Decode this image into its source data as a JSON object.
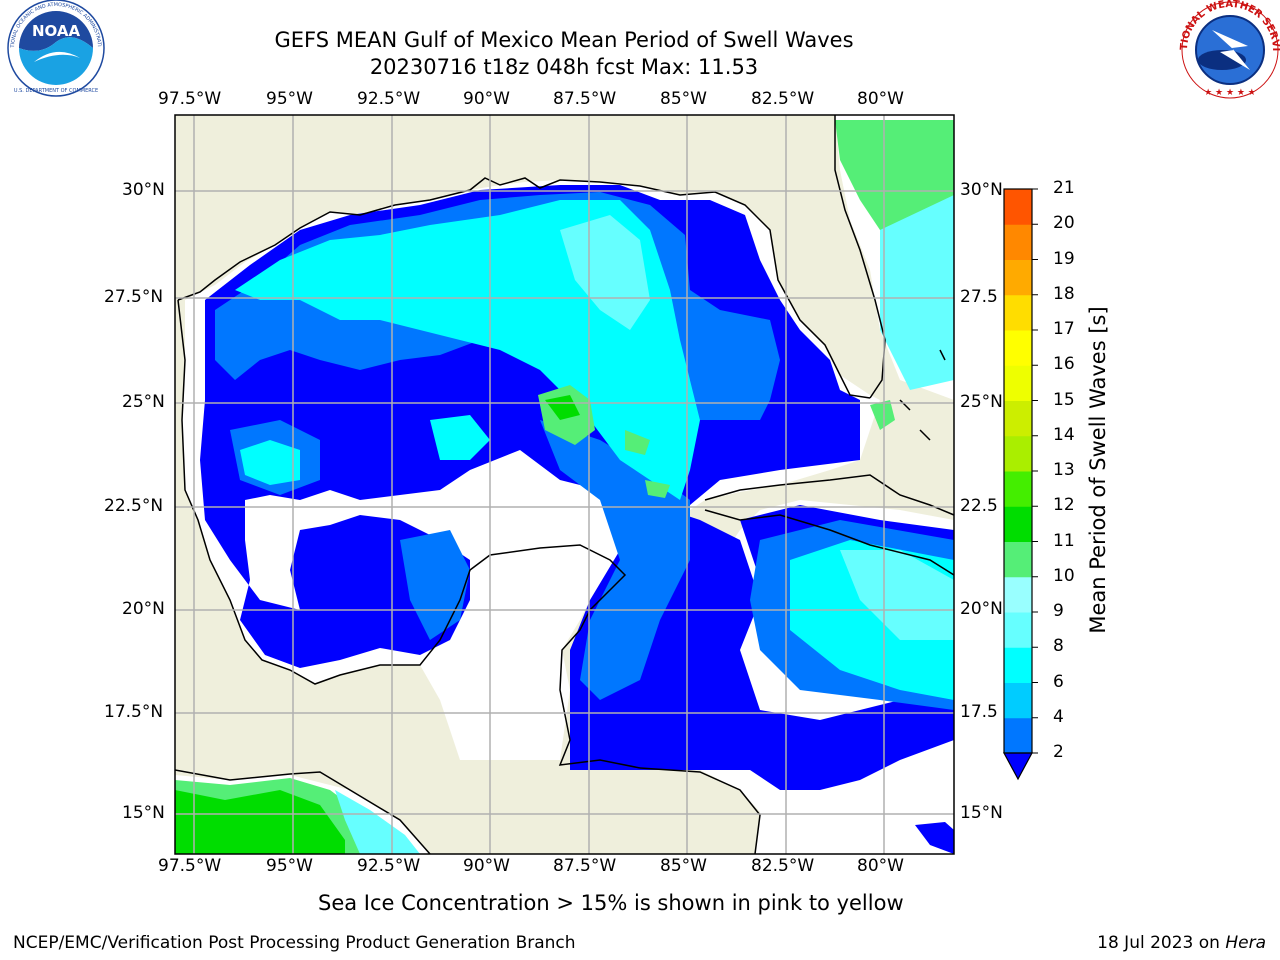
{
  "header": {
    "title_line1": "GEFS MEAN Gulf of Mexico Mean Period of Swell Waves",
    "title_line2": "20230716 t18z 048h fcst   Max: 11.53"
  },
  "logos": {
    "noaa_text": "NOAA",
    "noaa_ring_top": "NATIONAL OCEANIC AND ATMOSPHERIC ADMINISTRATION",
    "noaa_ring_bottom": "U.S. DEPARTMENT OF COMMERCE",
    "nws_ring_top": "NATIONAL WEATHER SERVICE"
  },
  "map": {
    "lon_labels": [
      "97.5°W",
      "95°W",
      "92.5°W",
      "90°W",
      "87.5°W",
      "85°W",
      "82.5°W",
      "80°W"
    ],
    "lat_labels_left": [
      "30°N",
      "27.5°N",
      "25°N",
      "22.5°N",
      "20°N",
      "17.5°N",
      "15°N"
    ],
    "lat_labels_right": [
      "30°N",
      "27.5",
      "25°N",
      "22.5",
      "20°N",
      "17.5",
      "15°N"
    ],
    "colors": {
      "land": "#efefdc",
      "ocean_missing": "#ffffff",
      "grid": "#b0b0b0"
    }
  },
  "colorbar": {
    "label": "Mean Period of Swell Waves [s]",
    "ticks": [
      "2",
      "4",
      "6",
      "8",
      "9",
      "10",
      "11",
      "12",
      "13",
      "14",
      "15",
      "16",
      "17",
      "18",
      "19",
      "20",
      "21"
    ],
    "colors": [
      "#0000ff",
      "#0077ff",
      "#00ccff",
      "#00ffff",
      "#66ffff",
      "#99ffff",
      "#55ee77",
      "#00dd00",
      "#44ee00",
      "#aaee00",
      "#ccee00",
      "#eeff00",
      "#ffff00",
      "#ffdd00",
      "#ffaa00",
      "#ff8800",
      "#ff5500",
      "#ff2200",
      "#ff0000"
    ]
  },
  "footer": {
    "note": "Sea Ice Concentration > 15% is shown in pink to yellow",
    "left": "NCEP/EMC/Verification Post Processing Product Generation Branch",
    "right_prefix": "18 Jul 2023 on ",
    "right_host": "Hera"
  }
}
